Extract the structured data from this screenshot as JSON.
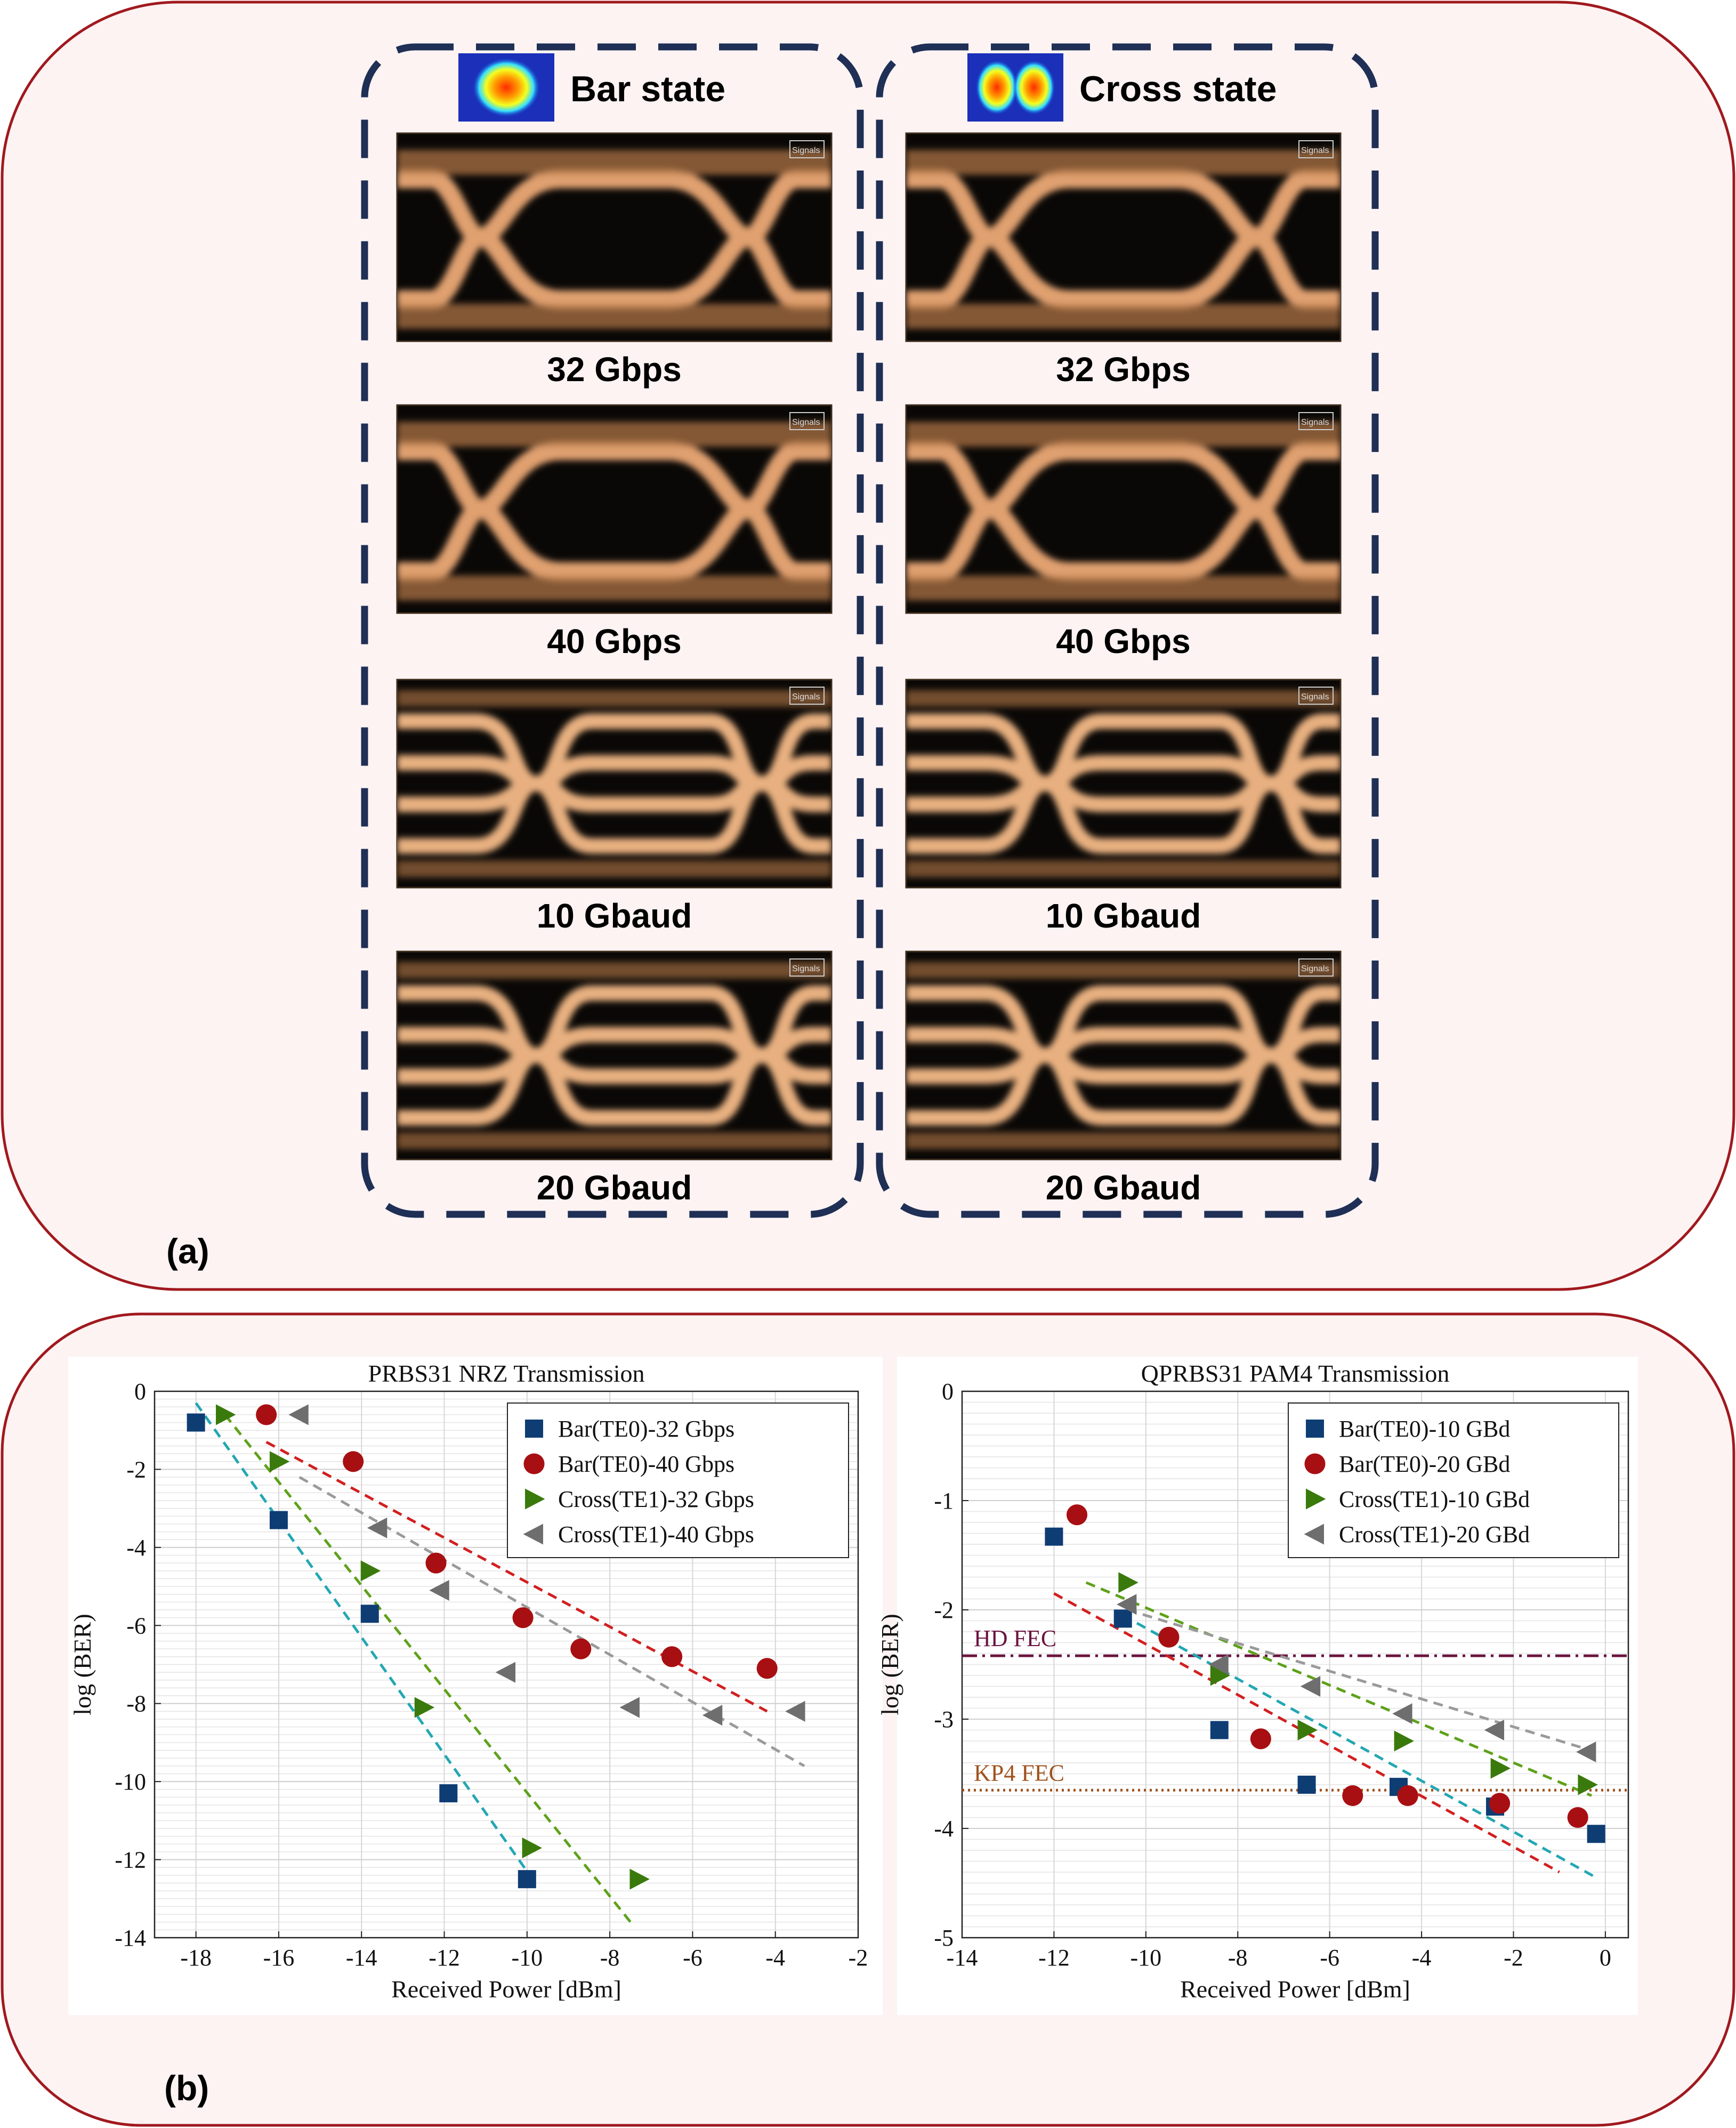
{
  "panel_a": {
    "label": "(a)",
    "columns": [
      {
        "title": "Bar state",
        "mode": "single-lobe",
        "eyes": [
          {
            "caption": "32 Gbps",
            "type": "nrz",
            "signals_label": "Signals"
          },
          {
            "caption": "40 Gbps",
            "type": "nrz",
            "signals_label": "Signals"
          },
          {
            "caption": "10 Gbaud",
            "type": "pam4",
            "signals_label": "Signals"
          },
          {
            "caption": "20 Gbaud",
            "type": "pam4",
            "signals_label": "Signals"
          }
        ]
      },
      {
        "title": "Cross state",
        "mode": "double-lobe",
        "eyes": [
          {
            "caption": "32 Gbps",
            "type": "nrz",
            "signals_label": "Signals"
          },
          {
            "caption": "40 Gbps",
            "type": "nrz",
            "signals_label": "Signals"
          },
          {
            "caption": "10 Gbaud",
            "type": "pam4",
            "signals_label": "Signals"
          },
          {
            "caption": "20 Gbaud",
            "type": "pam4",
            "signals_label": "Signals"
          }
        ]
      }
    ]
  },
  "panel_b": {
    "label": "(b)"
  },
  "colors": {
    "frame": "#a0191e",
    "frame_fill": "#fdf3f3",
    "dash": "#1f2f55",
    "bar32": "#0e3d73",
    "bar40": "#a80f12",
    "cross32": "#3a7a0c",
    "cross40": "#6e6e6e",
    "fit_bar32": "#23a7b3",
    "fit_bar40": "#d21f1f",
    "fit_cross32": "#5ea11a",
    "fit_cross40": "#9a9a9a",
    "hdfec": "#6b1340",
    "kp4fec": "#a0521d"
  },
  "chart_data": [
    {
      "type": "scatter",
      "title": "PRBS31 NRZ Transmission",
      "xlabel": "Received Power [dBm]",
      "ylabel": "log (BER)",
      "xlim": [
        -19,
        -2
      ],
      "ylim": [
        -14,
        0
      ],
      "xticks": [
        -18,
        -16,
        -14,
        -12,
        -10,
        -8,
        -6,
        -4,
        -2
      ],
      "yticks": [
        0,
        -2,
        -4,
        -6,
        -8,
        -10,
        -12,
        -14
      ],
      "grid": true,
      "legend_position": "top-right",
      "series": [
        {
          "name": "Bar(TE0)-32 Gbps",
          "marker": "square",
          "color": "#0e3d73",
          "x": [
            -18,
            -16,
            -13.8,
            -11.9,
            -10
          ],
          "y": [
            -0.8,
            -3.3,
            -5.7,
            -10.3,
            -12.5
          ],
          "fit": {
            "x": [
              -18.0,
              -10.0
            ],
            "y": [
              -0.3,
              -12.3
            ],
            "color": "#23a7b3"
          }
        },
        {
          "name": "Bar(TE0)-40 Gbps",
          "marker": "circle",
          "color": "#a80f12",
          "x": [
            -16.3,
            -14.2,
            -12.2,
            -10.1,
            -8.7,
            -6.5,
            -4.2
          ],
          "y": [
            -0.6,
            -1.8,
            -4.4,
            -5.8,
            -6.6,
            -6.8,
            -7.1
          ],
          "fit": {
            "x": [
              -16.3,
              -4.2
            ],
            "y": [
              -1.3,
              -8.2
            ],
            "color": "#d21f1f"
          }
        },
        {
          "name": "Cross(TE1)-32 Gbps",
          "marker": "triangle-right",
          "color": "#3a7a0c",
          "x": [
            -17.3,
            -16,
            -13.8,
            -12.5,
            -9.9,
            -7.3
          ],
          "y": [
            -0.6,
            -1.8,
            -4.6,
            -8.1,
            -11.7,
            -12.5
          ],
          "fit": {
            "x": [
              -17.3,
              -7.5
            ],
            "y": [
              -0.6,
              -13.6
            ],
            "color": "#5ea11a"
          }
        },
        {
          "name": "Cross(TE1)-40 Gbps",
          "marker": "triangle-left",
          "color": "#6e6e6e",
          "x": [
            -15.5,
            -13.6,
            -12.1,
            -10.5,
            -7.5,
            -5.5,
            -3.5
          ],
          "y": [
            -0.6,
            -3.5,
            -5.1,
            -7.2,
            -8.1,
            -8.3,
            -8.2
          ],
          "fit": {
            "x": [
              -15.5,
              -3.3
            ],
            "y": [
              -2.2,
              -9.6
            ],
            "color": "#9a9a9a"
          }
        }
      ]
    },
    {
      "type": "scatter",
      "title": "QPRBS31 PAM4 Transmission",
      "xlabel": "Received Power [dBm]",
      "ylabel": "log (BER)",
      "xlim": [
        -14,
        0.5
      ],
      "ylim": [
        -5,
        0
      ],
      "xticks": [
        -14,
        -12,
        -10,
        -8,
        -6,
        -4,
        -2,
        0
      ],
      "yticks": [
        0,
        -1,
        -2,
        -3,
        -4,
        -5
      ],
      "grid": true,
      "legend_position": "top-right",
      "reference_lines": [
        {
          "label": "HD FEC",
          "y": -2.42,
          "style": "dashdot",
          "color": "#6b1340"
        },
        {
          "label": "KP4 FEC",
          "y": -3.65,
          "style": "dotted",
          "color": "#a0521d"
        }
      ],
      "series": [
        {
          "name": "Bar(TE0)-10 GBd",
          "marker": "square",
          "color": "#0e3d73",
          "x": [
            -12,
            -10.5,
            -8.4,
            -6.5,
            -4.5,
            -2.4,
            -0.2
          ],
          "y": [
            -1.33,
            -2.08,
            -3.1,
            -3.6,
            -3.62,
            -3.8,
            -4.05
          ],
          "fit": {
            "x": [
              -10.5,
              -0.2
            ],
            "y": [
              -2.05,
              -4.45
            ],
            "color": "#23a7b3"
          }
        },
        {
          "name": "Bar(TE0)-20 GBd",
          "marker": "circle",
          "color": "#a80f12",
          "x": [
            -11.5,
            -9.5,
            -7.5,
            -5.5,
            -4.3,
            -2.3,
            -0.6
          ],
          "y": [
            -1.13,
            -2.25,
            -3.18,
            -3.7,
            -3.7,
            -3.77,
            -3.9
          ],
          "fit": {
            "x": [
              -12.0,
              -1.0
            ],
            "y": [
              -1.85,
              -4.4
            ],
            "color": "#d21f1f"
          }
        },
        {
          "name": "Cross(TE1)-10 GBd",
          "marker": "triangle-right",
          "color": "#3a7a0c",
          "x": [
            -10.4,
            -8.4,
            -6.5,
            -4.4,
            -2.3,
            -0.4
          ],
          "y": [
            -1.75,
            -2.6,
            -3.1,
            -3.2,
            -3.45,
            -3.6
          ],
          "fit": {
            "x": [
              -11.3,
              -0.3
            ],
            "y": [
              -1.75,
              -3.7
            ],
            "color": "#5ea11a"
          }
        },
        {
          "name": "Cross(TE1)-20 GBd",
          "marker": "triangle-left",
          "color": "#6e6e6e",
          "x": [
            -10.4,
            -8.4,
            -6.4,
            -4.4,
            -2.4,
            -0.4
          ],
          "y": [
            -1.95,
            -2.5,
            -2.7,
            -2.95,
            -3.1,
            -3.3
          ],
          "fit": {
            "x": [
              -10.4,
              -0.2
            ],
            "y": [
              -2.0,
              -3.3
            ],
            "color": "#9a9a9a"
          }
        }
      ]
    }
  ]
}
